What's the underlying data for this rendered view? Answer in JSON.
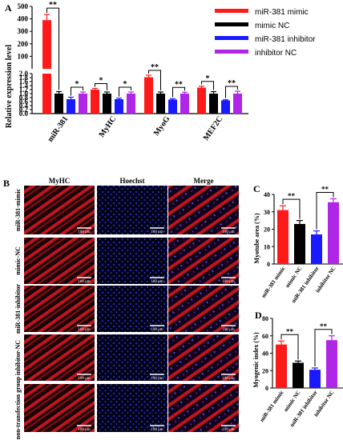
{
  "panel_labels": {
    "a": "A",
    "b": "B",
    "c": "C",
    "d": "D"
  },
  "colors": {
    "mimic": "#ff1a1a",
    "mimic_nc": "#000000",
    "inhibitor": "#1a1aff",
    "inhibitor_nc": "#b026e6",
    "cell_red": "#c0141e",
    "cell_blue": "#1e28c8"
  },
  "chart_data": [
    {
      "panel": "A",
      "type": "bar",
      "ylabel": "Relative expression level",
      "categories": [
        "miR-381",
        "MyHC",
        "MyoG",
        "MEF2C"
      ],
      "series": [
        {
          "name": "miR-381 mimic",
          "values": [
            390,
            1.2,
            1.82,
            1.3
          ]
        },
        {
          "name": "mimic NC",
          "values": [
            1.0,
            1.0,
            1.0,
            1.0
          ]
        },
        {
          "name": "miR-381 inhibitor",
          "values": [
            0.72,
            0.72,
            0.7,
            0.66
          ]
        },
        {
          "name": "inhibitor NC",
          "values": [
            1.0,
            1.0,
            1.0,
            1.0
          ]
        }
      ],
      "errors": [
        [
          45,
          0.06,
          0.1,
          0.07
        ],
        [
          0.1,
          0.08,
          0.08,
          0.1
        ],
        [
          0.1,
          0.05,
          0.04,
          0.03
        ],
        [
          0.08,
          0.08,
          0.07,
          0.12
        ]
      ],
      "yaxis_break": {
        "lower_range": [
          0,
          2.0
        ],
        "upper_range": [
          0,
          500
        ]
      },
      "lower_ticks": [
        "0.0",
        "0.2",
        "0.4",
        "0.6",
        "0.8",
        "1.0",
        "1.2",
        "1.4",
        "1.6",
        "1.8",
        "2.0"
      ],
      "upper_ticks": [
        "100",
        "200",
        "300",
        "400",
        "500"
      ],
      "significance": [
        {
          "category": "miR-381",
          "pair": [
            "miR-381 mimic",
            "mimic NC"
          ],
          "label": "**"
        },
        {
          "category": "miR-381",
          "pair": [
            "miR-381 inhibitor",
            "inhibitor NC"
          ],
          "label": "*"
        },
        {
          "category": "MyHC",
          "pair": [
            "miR-381 mimic",
            "mimic NC"
          ],
          "label": "*"
        },
        {
          "category": "MyHC",
          "pair": [
            "miR-381 inhibitor",
            "inhibitor NC"
          ],
          "label": "*"
        },
        {
          "category": "MyoG",
          "pair": [
            "miR-381 mimic",
            "mimic NC"
          ],
          "label": "**"
        },
        {
          "category": "MyoG",
          "pair": [
            "miR-381 inhibitor",
            "inhibitor NC"
          ],
          "label": "**"
        },
        {
          "category": "MEF2C",
          "pair": [
            "miR-381 mimic",
            "mimic NC"
          ],
          "label": "*"
        },
        {
          "category": "MEF2C",
          "pair": [
            "miR-381 inhibitor",
            "inhibitor NC"
          ],
          "label": "**"
        }
      ],
      "legend_position": "top-right"
    },
    {
      "panel": "C",
      "type": "bar",
      "ylabel": "Myotube area (%)",
      "ylim": [
        0,
        40
      ],
      "yticks": [
        "0",
        "10",
        "20",
        "30",
        "40"
      ],
      "categories": [
        "miR-381 mimic",
        "mimic NC",
        "miR-381 inhibitor",
        "inhibitor NC"
      ],
      "values": [
        31,
        23,
        17,
        35.5
      ],
      "errors": [
        2.5,
        2,
        2,
        2
      ],
      "significance": [
        {
          "pair": [
            "miR-381 mimic",
            "mimic NC"
          ],
          "label": "**"
        },
        {
          "pair": [
            "miR-381 inhibitor",
            "inhibitor NC"
          ],
          "label": "**"
        }
      ]
    },
    {
      "panel": "D",
      "type": "bar",
      "ylabel": "Myogenic index (%)",
      "ylim": [
        0,
        80
      ],
      "yticks": [
        "0",
        "20",
        "40",
        "60",
        "80"
      ],
      "categories": [
        "miR-381 mimic",
        "mimic NC",
        "miR-381 inhibitor",
        "inhibitor NC"
      ],
      "values": [
        50,
        29,
        21,
        55
      ],
      "errors": [
        4,
        2,
        2,
        5
      ],
      "significance": [
        {
          "pair": [
            "miR-381 mimic",
            "mimic NC"
          ],
          "label": "**"
        },
        {
          "pair": [
            "miR-381 inhibitor",
            "inhibitor NC"
          ],
          "label": "**"
        }
      ]
    }
  ],
  "micrographs": {
    "columns": [
      "MyHC",
      "Hoechst",
      "Merge"
    ],
    "rows": [
      "miR-381-mimic",
      "mimic-NC",
      "miR-381-inhibitor",
      "inhibitor-NC",
      "non-transfection group"
    ],
    "scale_bar_label": "100 μm"
  }
}
